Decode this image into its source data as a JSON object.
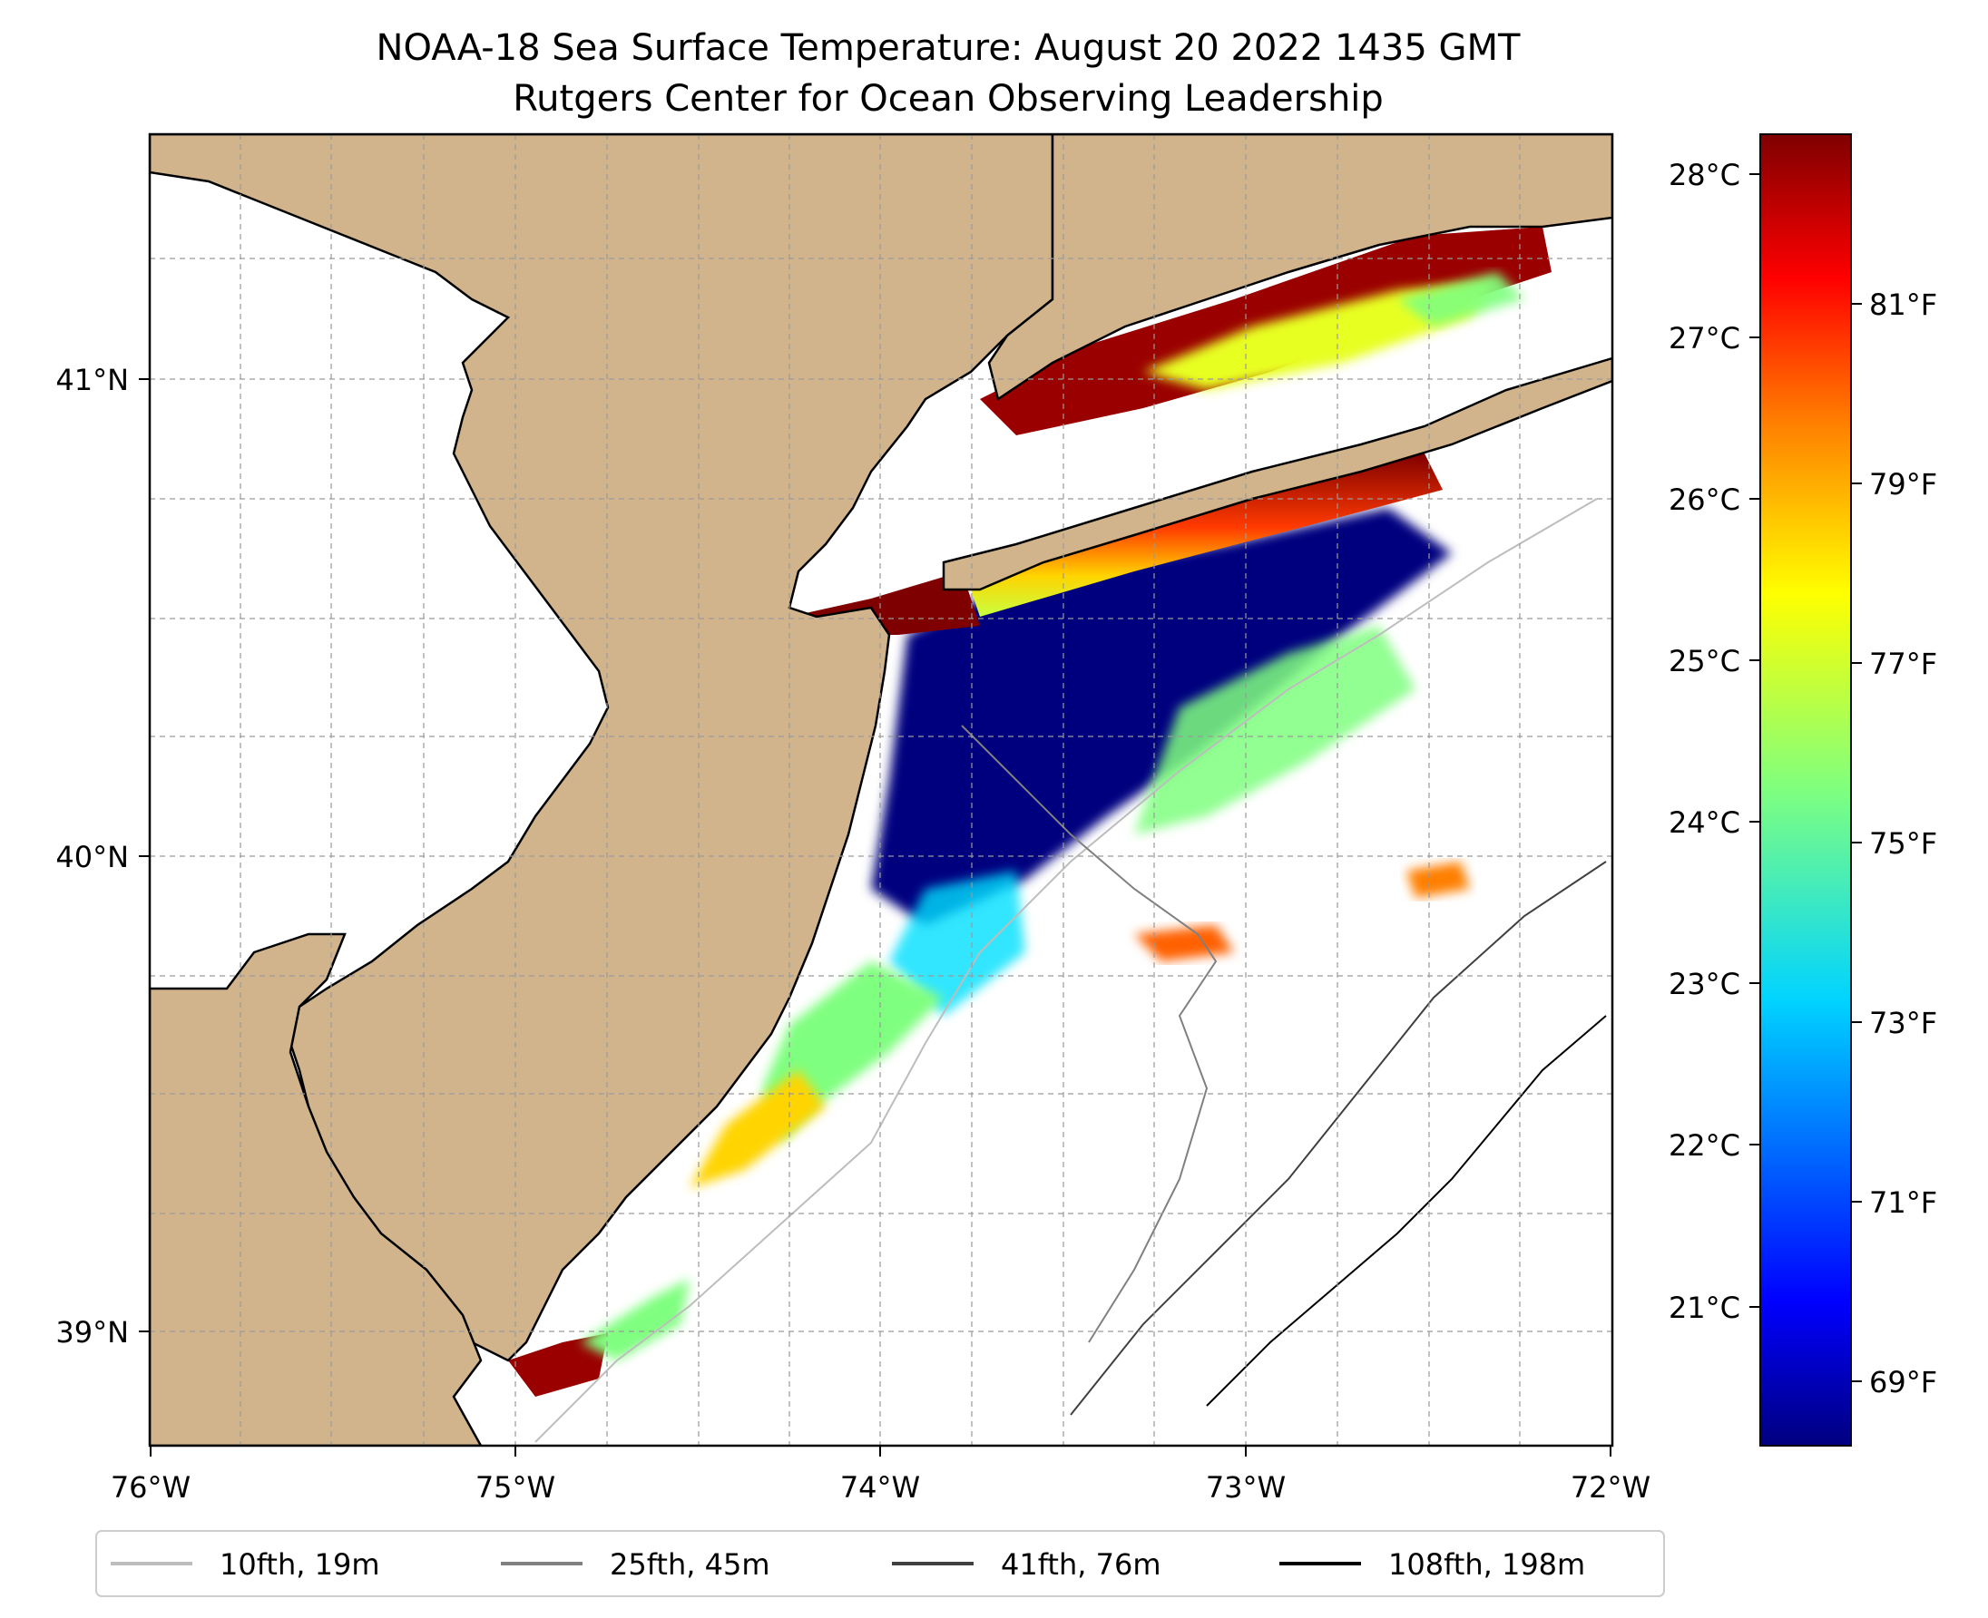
{
  "title": {
    "line1": "NOAA-18 Sea Surface Temperature: August 20 2022 1435 GMT",
    "line2": "Rutgers Center for Ocean Observing Leadership"
  },
  "map": {
    "lon_range": [
      -76,
      -72
    ],
    "lat_range": [
      38.78,
      41.58
    ],
    "x_ticks": [
      "76°W",
      "75°W",
      "74°W",
      "73°W",
      "72°W"
    ],
    "y_ticks": [
      "41°N",
      "40°N",
      "39°N"
    ],
    "land_color": "#d2b48c",
    "coast_color": "#000000"
  },
  "colorbar": {
    "celsius_ticks": [
      "28°C",
      "27°C",
      "26°C",
      "25°C",
      "24°C",
      "23°C",
      "22°C",
      "21°C"
    ],
    "fahrenheit_ticks": [
      "81°F",
      "79°F",
      "77°F",
      "75°F",
      "73°F",
      "71°F",
      "69°F"
    ],
    "colormap": "jet",
    "colors": [
      "#00007f",
      "#0000ff",
      "#007fff",
      "#00ffff",
      "#7fff7f",
      "#ffff00",
      "#ff7f00",
      "#ff0000",
      "#7f0000"
    ]
  },
  "legend": [
    {
      "label": "10fth, 19m",
      "color": "#bdbdbd"
    },
    {
      "label": "25fth, 45m",
      "color": "#808080"
    },
    {
      "label": "41fth, 76m",
      "color": "#404040"
    },
    {
      "label": "108fth, 198m",
      "color": "#000000"
    }
  ]
}
